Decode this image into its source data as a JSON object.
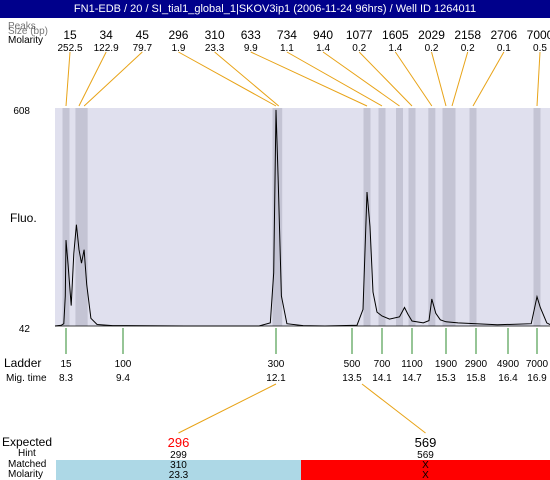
{
  "title": "FN1-EDB / 20 / SI_tial1_global_1|SKOV3ip1 (2006-11-24 96hrs) / Well ID 1264011",
  "labels": {
    "peaks": "Peaks",
    "size_bp": "Size (bp)",
    "molarity": "Molarity",
    "fluo": "Fluo.",
    "ladder": "Ladder",
    "mig_time": "Mig. time",
    "expected": "Expected",
    "hint": "Hint",
    "matched": "Matched"
  },
  "colors": {
    "title_bg": "#00008b",
    "plot_bg": "#e0e0ee",
    "band": "#c4c4d4",
    "peak_connector": "#e8a317",
    "ladder_connector": "#2e8b2e",
    "matched_ok": "#add8e6",
    "matched_fail": "#ff0000",
    "expected_highlight": "#ff0000"
  },
  "chart_data": {
    "type": "line",
    "ylabel": "Fluo.",
    "ylim": [
      42,
      608
    ],
    "y_ticks": [
      "608",
      "42"
    ],
    "peaks": [
      {
        "size": "15",
        "molarity": "252.5",
        "time": 8.3
      },
      {
        "size": "34",
        "molarity": "122.9",
        "time": 8.55
      },
      {
        "size": "45",
        "molarity": "79.7",
        "time": 8.65
      },
      {
        "size": "296",
        "molarity": "1.9",
        "time": 12.1
      },
      {
        "size": "310",
        "molarity": "23.3",
        "time": 12.15
      },
      {
        "size": "633",
        "molarity": "9.9",
        "time": 13.8
      },
      {
        "size": "734",
        "molarity": "1.1",
        "time": 14.1
      },
      {
        "size": "940",
        "molarity": "1.4",
        "time": 14.45
      },
      {
        "size": "1077",
        "molarity": "0.2",
        "time": 14.7
      },
      {
        "size": "1605",
        "molarity": "1.4",
        "time": 15.05
      },
      {
        "size": "2029",
        "molarity": "0.2",
        "time": 15.3
      },
      {
        "size": "2158",
        "molarity": "0.2",
        "time": 15.4
      },
      {
        "size": "2706",
        "molarity": "0.1",
        "time": 15.75
      },
      {
        "size": "7000",
        "molarity": "0.5",
        "time": 16.9
      }
    ],
    "ladder": [
      {
        "size": "15",
        "time": "8.3"
      },
      {
        "size": "100",
        "time": "9.4"
      },
      {
        "size": "300",
        "time": "12.1"
      },
      {
        "size": "500",
        "time": "13.5"
      },
      {
        "size": "700",
        "time": "14.1"
      },
      {
        "size": "1100",
        "time": "14.7"
      },
      {
        "size": "1900",
        "time": "15.3"
      },
      {
        "size": "2900",
        "time": "15.8"
      },
      {
        "size": "4900",
        "time": "16.4"
      },
      {
        "size": "7000",
        "time": "16.9"
      }
    ],
    "trace": [
      [
        7.7,
        42
      ],
      [
        8.05,
        44
      ],
      [
        8.18,
        48
      ],
      [
        8.26,
        120
      ],
      [
        8.3,
        265
      ],
      [
        8.34,
        200
      ],
      [
        8.4,
        95
      ],
      [
        8.45,
        230
      ],
      [
        8.5,
        305
      ],
      [
        8.55,
        240
      ],
      [
        8.6,
        205
      ],
      [
        8.65,
        240
      ],
      [
        8.7,
        150
      ],
      [
        8.78,
        62
      ],
      [
        8.9,
        46
      ],
      [
        9.2,
        43
      ],
      [
        10.5,
        42
      ],
      [
        11.8,
        42
      ],
      [
        12.0,
        50
      ],
      [
        12.06,
        180
      ],
      [
        12.1,
        603
      ],
      [
        12.14,
        420
      ],
      [
        12.2,
        120
      ],
      [
        12.3,
        48
      ],
      [
        12.6,
        43
      ],
      [
        13.0,
        42
      ],
      [
        13.6,
        44
      ],
      [
        13.72,
        85
      ],
      [
        13.8,
        390
      ],
      [
        13.86,
        300
      ],
      [
        13.92,
        130
      ],
      [
        14.0,
        78
      ],
      [
        14.1,
        68
      ],
      [
        14.25,
        60
      ],
      [
        14.45,
        66
      ],
      [
        14.55,
        90
      ],
      [
        14.62,
        72
      ],
      [
        14.7,
        55
      ],
      [
        14.9,
        50
      ],
      [
        15.0,
        56
      ],
      [
        15.05,
        112
      ],
      [
        15.12,
        75
      ],
      [
        15.2,
        58
      ],
      [
        15.3,
        53
      ],
      [
        15.5,
        50
      ],
      [
        16.2,
        45
      ],
      [
        16.8,
        48
      ],
      [
        16.9,
        118
      ],
      [
        16.95,
        90
      ],
      [
        17.05,
        50
      ],
      [
        17.1,
        46
      ]
    ],
    "expected": [
      {
        "label": "296",
        "hint": "299",
        "matched": "310",
        "molarity": "23.3",
        "highlight": true,
        "ok": true,
        "time": 12.1
      },
      {
        "label": "569",
        "hint": "569",
        "matched": "X",
        "molarity": "X",
        "highlight": false,
        "ok": false,
        "time": 13.7
      }
    ]
  }
}
